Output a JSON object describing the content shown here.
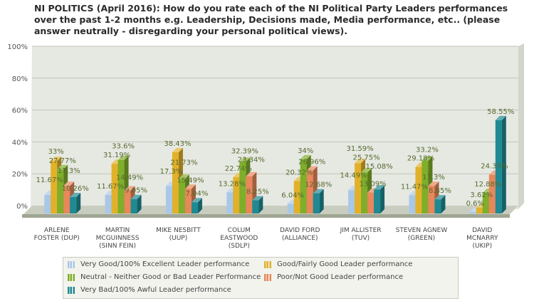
{
  "chart_data": {
    "type": "bar",
    "title": "NI POLITICS (April 2016): How do you rate each of the NI Political Party Leaders performances over the past 1-2 months e.g. Leadership, Decisions made, Media performance, etc.. (please answer neutrally - disregarding your personal political views).",
    "categories": [
      "ARLENE FOSTER (DUP)",
      "MARTIN MCGUINNESS (SINN FEIN)",
      "MIKE NESBITT (UUP)",
      "COLUM EASTWOOD (SDLP)",
      "DAVID FORD (ALLIANCE)",
      "JIM ALLISTER (TUV)",
      "STEVEN AGNEW (GREEN)",
      "DAVID MCNARRY (UKIP)"
    ],
    "category_lines": [
      [
        "ARLENE",
        "FOSTER (DUP)"
      ],
      [
        "MARTIN",
        "MCGUINNESS",
        "(SINN FEIN)"
      ],
      [
        "MIKE NESBITT",
        "(UUP)"
      ],
      [
        "COLUM",
        "EASTWOOD",
        "(SDLP)"
      ],
      [
        "DAVID FORD",
        "(ALLIANCE)"
      ],
      [
        "JIM ALLISTER",
        "(TUV)"
      ],
      [
        "STEVEN AGNEW",
        "(GREEN)"
      ],
      [
        "DAVID",
        "MCNARRY",
        "(UKIP)"
      ]
    ],
    "series": [
      {
        "name": "Very Good/100% Excellent Leader performance",
        "color": "#a9c8e8",
        "values": [
          11.67,
          11.67,
          17.3,
          13.28,
          6.04,
          14.49,
          11.47,
          0.6
        ]
      },
      {
        "name": "Good/Fairly Good Leader performance",
        "color": "#e2b12a",
        "values": [
          33,
          31.19,
          38.43,
          22.74,
          20.32,
          31.59,
          29.18,
          3.62
        ]
      },
      {
        "name": "Neutral - Neither Good or Bad Leader Performance",
        "color": "#7fae2a",
        "values": [
          27.77,
          33.6,
          21.73,
          32.39,
          34,
          25.75,
          33.2,
          12.88
        ]
      },
      {
        "name": "Poor/Not Good Leader performance",
        "color": "#e8875a",
        "values": [
          17.3,
          14.49,
          15.49,
          23.34,
          26.96,
          13.09,
          17.3,
          24.35
        ]
      },
      {
        "name": "Very Bad/100% Awful Leader performance",
        "color": "#1f8a93",
        "values": [
          10.26,
          9.05,
          7.04,
          8.25,
          12.68,
          15.08,
          8.85,
          58.55
        ]
      }
    ],
    "yticks": [
      "0%",
      "20%",
      "40%",
      "60%",
      "80%",
      "100%"
    ],
    "ylim": [
      0,
      100
    ],
    "xlabel": "",
    "ylabel": "",
    "grid": true,
    "legend": "bottom",
    "value_suffix": "%"
  }
}
